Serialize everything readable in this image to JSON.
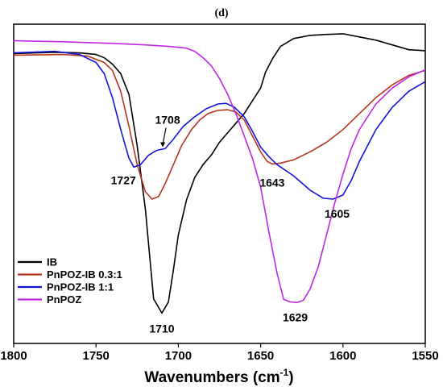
{
  "chart_data": {
    "type": "line",
    "panel_label": "(d)",
    "title": "",
    "xlabel": "Wavenumbers (cm",
    "xlabel_sup": "-1",
    "xlabel_suffix": ")",
    "ylabel": "",
    "xlim": [
      1800,
      1550
    ],
    "x_reversed": true,
    "ylim": [
      0,
      1
    ],
    "y_ticks_shown": false,
    "grid": false,
    "x_ticks": [
      1800,
      1750,
      1700,
      1650,
      1600,
      1550
    ],
    "x_tick_labels": [
      "1800",
      "1750",
      "1700",
      "1650",
      "1600",
      "1550"
    ],
    "legend": {
      "position": "bottom-left",
      "entries": [
        {
          "label": "IB",
          "color": "#000000"
        },
        {
          "label": "PnPOZ-IB 0.3:1",
          "color": "#b5361f"
        },
        {
          "label": "PnPOZ-IB 1:1",
          "color": "#1414d6"
        },
        {
          "label": "PnPOZ",
          "color": "#c026e8"
        }
      ]
    },
    "series": [
      {
        "name": "IB",
        "color": "#000000",
        "points": [
          [
            1800,
            0.908
          ],
          [
            1775,
            0.912
          ],
          [
            1760,
            0.91
          ],
          [
            1750,
            0.905
          ],
          [
            1745,
            0.895
          ],
          [
            1740,
            0.875
          ],
          [
            1735,
            0.845
          ],
          [
            1730,
            0.78
          ],
          [
            1725,
            0.62
          ],
          [
            1720,
            0.42
          ],
          [
            1715,
            0.14
          ],
          [
            1710,
            0.095
          ],
          [
            1706,
            0.13
          ],
          [
            1703,
            0.23
          ],
          [
            1700,
            0.34
          ],
          [
            1695,
            0.45
          ],
          [
            1690,
            0.52
          ],
          [
            1685,
            0.56
          ],
          [
            1680,
            0.59
          ],
          [
            1675,
            0.63
          ],
          [
            1670,
            0.66
          ],
          [
            1665,
            0.69
          ],
          [
            1660,
            0.72
          ],
          [
            1655,
            0.76
          ],
          [
            1650,
            0.8
          ],
          [
            1647,
            0.85
          ],
          [
            1643,
            0.89
          ],
          [
            1638,
            0.93
          ],
          [
            1630,
            0.955
          ],
          [
            1620,
            0.965
          ],
          [
            1610,
            0.968
          ],
          [
            1600,
            0.97
          ],
          [
            1590,
            0.96
          ],
          [
            1580,
            0.95
          ],
          [
            1570,
            0.935
          ],
          [
            1560,
            0.92
          ],
          [
            1550,
            0.917
          ]
        ]
      },
      {
        "name": "PnPOZ-IB 0.3:1",
        "color": "#b5361f",
        "points": [
          [
            1800,
            0.903
          ],
          [
            1770,
            0.905
          ],
          [
            1755,
            0.9
          ],
          [
            1745,
            0.88
          ],
          [
            1740,
            0.855
          ],
          [
            1735,
            0.79
          ],
          [
            1730,
            0.68
          ],
          [
            1725,
            0.56
          ],
          [
            1720,
            0.475
          ],
          [
            1716,
            0.452
          ],
          [
            1712,
            0.46
          ],
          [
            1708,
            0.5
          ],
          [
            1703,
            0.56
          ],
          [
            1698,
            0.62
          ],
          [
            1692,
            0.67
          ],
          [
            1687,
            0.7
          ],
          [
            1682,
            0.72
          ],
          [
            1676,
            0.73
          ],
          [
            1670,
            0.732
          ],
          [
            1665,
            0.725
          ],
          [
            1660,
            0.7
          ],
          [
            1655,
            0.65
          ],
          [
            1650,
            0.6
          ],
          [
            1646,
            0.57
          ],
          [
            1643,
            0.562
          ],
          [
            1638,
            0.565
          ],
          [
            1630,
            0.575
          ],
          [
            1620,
            0.6
          ],
          [
            1610,
            0.63
          ],
          [
            1600,
            0.67
          ],
          [
            1590,
            0.72
          ],
          [
            1580,
            0.77
          ],
          [
            1570,
            0.81
          ],
          [
            1560,
            0.84
          ],
          [
            1550,
            0.855
          ]
        ]
      },
      {
        "name": "PnPOZ-IB 1:1",
        "color": "#1414d6",
        "points": [
          [
            1800,
            0.91
          ],
          [
            1775,
            0.915
          ],
          [
            1760,
            0.905
          ],
          [
            1750,
            0.88
          ],
          [
            1745,
            0.845
          ],
          [
            1740,
            0.77
          ],
          [
            1735,
            0.67
          ],
          [
            1730,
            0.58
          ],
          [
            1727,
            0.552
          ],
          [
            1723,
            0.56
          ],
          [
            1718,
            0.59
          ],
          [
            1713,
            0.605
          ],
          [
            1708,
            0.61
          ],
          [
            1703,
            0.64
          ],
          [
            1697,
            0.68
          ],
          [
            1690,
            0.71
          ],
          [
            1683,
            0.735
          ],
          [
            1676,
            0.75
          ],
          [
            1671,
            0.752
          ],
          [
            1666,
            0.74
          ],
          [
            1660,
            0.71
          ],
          [
            1655,
            0.665
          ],
          [
            1650,
            0.615
          ],
          [
            1645,
            0.585
          ],
          [
            1640,
            0.56
          ],
          [
            1630,
            0.525
          ],
          [
            1620,
            0.48
          ],
          [
            1612,
            0.455
          ],
          [
            1606,
            0.452
          ],
          [
            1600,
            0.465
          ],
          [
            1595,
            0.51
          ],
          [
            1590,
            0.57
          ],
          [
            1580,
            0.67
          ],
          [
            1570,
            0.74
          ],
          [
            1560,
            0.79
          ],
          [
            1550,
            0.82
          ]
        ]
      },
      {
        "name": "PnPOZ",
        "color": "#c026e8",
        "points": [
          [
            1800,
            0.948
          ],
          [
            1770,
            0.945
          ],
          [
            1740,
            0.94
          ],
          [
            1720,
            0.935
          ],
          [
            1705,
            0.93
          ],
          [
            1695,
            0.925
          ],
          [
            1690,
            0.915
          ],
          [
            1685,
            0.895
          ],
          [
            1680,
            0.87
          ],
          [
            1675,
            0.83
          ],
          [
            1670,
            0.78
          ],
          [
            1665,
            0.72
          ],
          [
            1660,
            0.65
          ],
          [
            1655,
            0.58
          ],
          [
            1650,
            0.49
          ],
          [
            1645,
            0.35
          ],
          [
            1640,
            0.22
          ],
          [
            1636,
            0.138
          ],
          [
            1632,
            0.13
          ],
          [
            1628,
            0.128
          ],
          [
            1624,
            0.135
          ],
          [
            1620,
            0.17
          ],
          [
            1615,
            0.24
          ],
          [
            1610,
            0.34
          ],
          [
            1605,
            0.44
          ],
          [
            1600,
            0.53
          ],
          [
            1595,
            0.61
          ],
          [
            1590,
            0.67
          ],
          [
            1580,
            0.75
          ],
          [
            1570,
            0.8
          ],
          [
            1560,
            0.835
          ],
          [
            1550,
            0.857
          ]
        ]
      }
    ],
    "annotations": [
      {
        "text": "1708",
        "x": 1708,
        "y": 0.61,
        "arrow": true
      },
      {
        "text": "1727",
        "x": 1727,
        "y": 0.552
      },
      {
        "text": "1710",
        "x": 1710,
        "y": 0.095
      },
      {
        "text": "1643",
        "x": 1643,
        "y": 0.562
      },
      {
        "text": "1605",
        "x": 1606,
        "y": 0.452
      },
      {
        "text": "1629",
        "x": 1629,
        "y": 0.128
      }
    ]
  }
}
